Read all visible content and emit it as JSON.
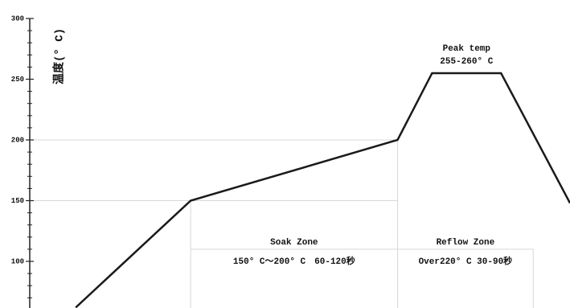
{
  "chart_data": {
    "type": "line",
    "ylabel": "温度(° C)",
    "x": [
      20,
      70,
      160,
      175,
      205,
      235
    ],
    "values": [
      62,
      150,
      200,
      255,
      255,
      148
    ],
    "color": "#1a1a1a",
    "xlim": [
      0,
      235
    ],
    "ylim": [
      60,
      300
    ],
    "yticks": [
      100,
      150,
      200,
      250,
      300
    ],
    "yminor_ticks": [
      70,
      80,
      90,
      110,
      120,
      130,
      140,
      160,
      170,
      180,
      190,
      210,
      220,
      230,
      240,
      260,
      270,
      280,
      290
    ],
    "hlines": [
      150,
      200
    ],
    "zones": [
      {
        "title": "Soak Zone",
        "detail": "150° C～200° C　60-120秒",
        "x_range": [
          70,
          160
        ]
      },
      {
        "title": "Reflow Zone",
        "detail": "Over220° C 30-90秒",
        "x_range": [
          160,
          219
        ]
      }
    ],
    "peak_annotation": {
      "title": "Peak temp",
      "detail": "255-260° C"
    }
  }
}
